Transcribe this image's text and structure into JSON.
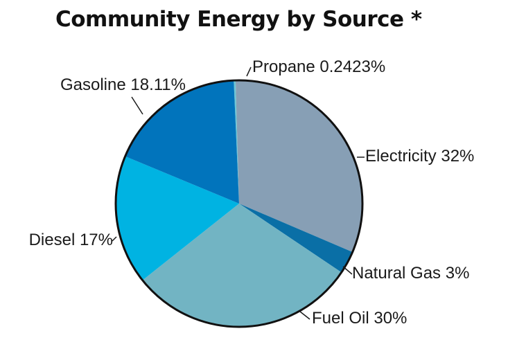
{
  "chart_data": {
    "type": "pie",
    "title": "Community Energy by Source *",
    "slices": [
      {
        "label": "Propane",
        "value": 0.2423,
        "display": "Propane 0.2423%",
        "color": "#6cc6d6"
      },
      {
        "label": "Electricity",
        "value": 32,
        "display": "Electricity 32%",
        "color": "#879fb5"
      },
      {
        "label": "Natural Gas",
        "value": 3,
        "display": "Natural Gas 3%",
        "color": "#0a6fa6"
      },
      {
        "label": "Fuel Oil",
        "value": 30,
        "display": "Fuel Oil 30%",
        "color": "#72b4c3"
      },
      {
        "label": "Diesel",
        "value": 17,
        "display": "Diesel 17%",
        "color": "#00b3e2"
      },
      {
        "label": "Gasoline",
        "value": 18.11,
        "display": "Gasoline 18.11%",
        "color": "#0174bc"
      }
    ],
    "outline_color": "#111111"
  }
}
